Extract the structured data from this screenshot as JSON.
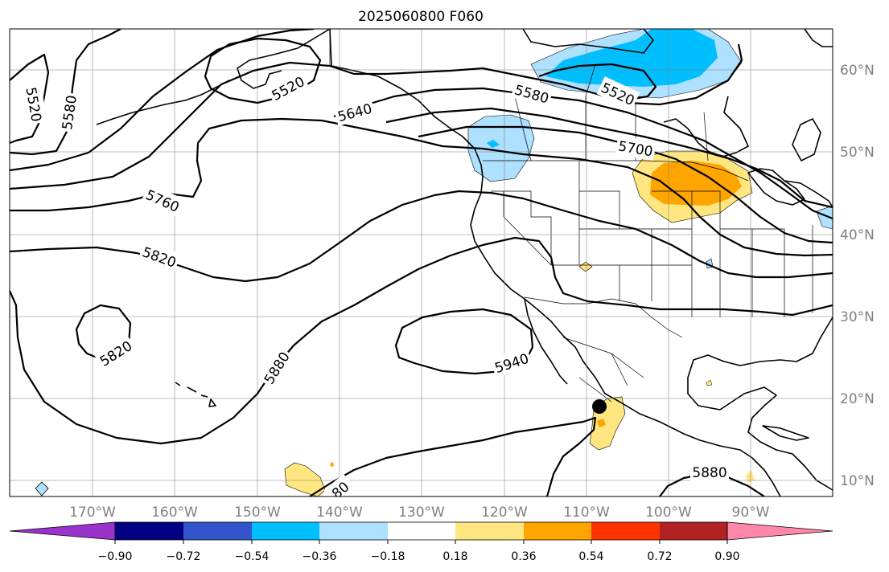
{
  "map": {
    "title": "2025060800 F060",
    "lon_ticks": [
      "170°W",
      "160°W",
      "150°W",
      "140°W",
      "130°W",
      "120°W",
      "110°W",
      "100°W",
      "90°W"
    ],
    "lat_ticks": [
      "60°N",
      "50°N",
      "40°N",
      "30°N",
      "20°N",
      "10°N"
    ],
    "extent": {
      "lon": [
        -180,
        -80
      ],
      "lat": [
        8,
        65
      ]
    },
    "grid": true
  },
  "contours": {
    "units": "m",
    "labels": [
      {
        "text": "5520",
        "lon": -177,
        "lat": 56
      },
      {
        "text": "5580",
        "lon": -173,
        "lat": 55
      },
      {
        "text": "5520",
        "lon": -151.5,
        "lat": 59
      },
      {
        "text": "5640",
        "lon": -138.5,
        "lat": 56
      },
      {
        "text": "5580",
        "lon": -118.5,
        "lat": 58
      },
      {
        "text": "5520",
        "lon": -107,
        "lat": 58
      },
      {
        "text": "5700",
        "lon": -103,
        "lat": 50.7
      },
      {
        "text": "5760",
        "lon": -155.5,
        "lat": 44
      },
      {
        "text": "5820",
        "lon": -157.5,
        "lat": 37.1
      },
      {
        "text": "5820",
        "lon": -168,
        "lat": 23.3
      },
      {
        "text": "5880",
        "lon": -150,
        "lat": 22.4
      },
      {
        "text": "5940",
        "lon": -119,
        "lat": 22.1
      },
      {
        "text": "5880",
        "lon": -95,
        "lat": 10.6
      },
      {
        "text": "80",
        "lon": -139,
        "lat": 9.2
      }
    ]
  },
  "anomaly_legend": {
    "tick_labels": [
      "−0.90",
      "−0.72",
      "−0.54",
      "−0.36",
      "−0.18",
      "0.18",
      "0.36",
      "0.54",
      "0.72",
      "0.90"
    ],
    "colors": [
      "#9933cc",
      "#000080",
      "#3355cc",
      "#00bfff",
      "#aee0ff",
      "#ffffff",
      "#ffe680",
      "#ffa500",
      "#ff3300",
      "#b22222",
      "#ff88aa"
    ]
  },
  "marker": {
    "label": "point-marker",
    "lon": -108,
    "lat": 19
  }
}
